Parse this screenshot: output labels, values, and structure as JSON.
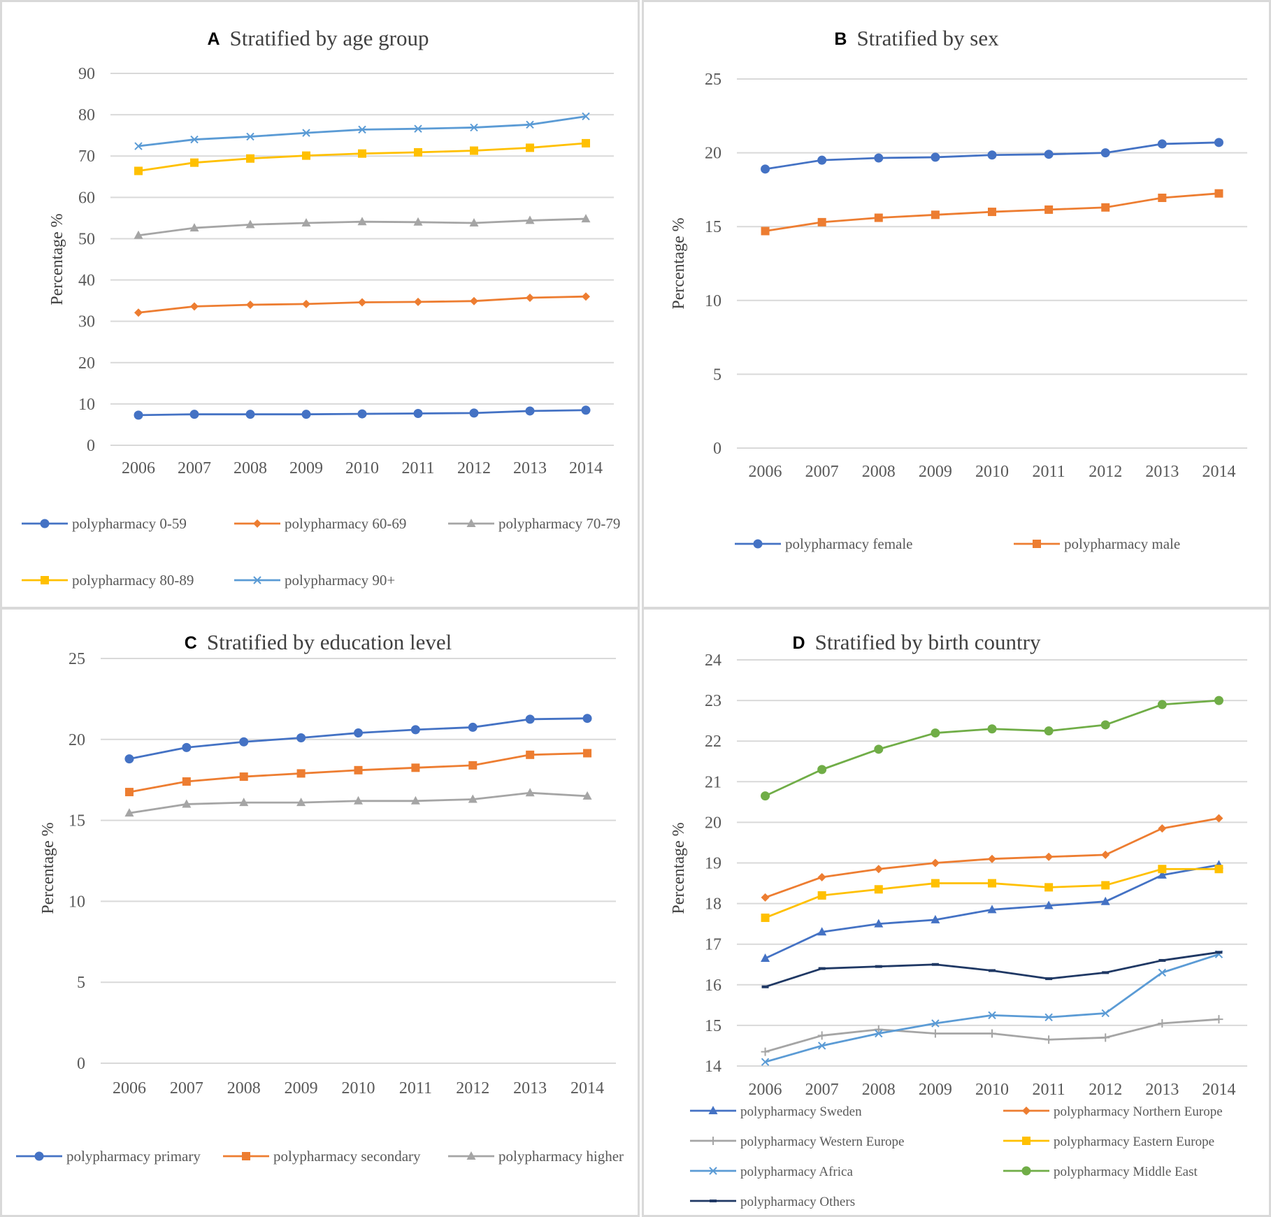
{
  "chart_data": [
    {
      "id": "A",
      "type": "line",
      "panel_letter": "A",
      "title": "Stratified by age group",
      "xlabel": "",
      "ylabel": "Percentage %",
      "categories": [
        "2006",
        "2007",
        "2008",
        "2009",
        "2010",
        "2011",
        "2012",
        "2013",
        "2014"
      ],
      "ylim": [
        0,
        90
      ],
      "yticks": [
        0,
        10,
        20,
        30,
        40,
        50,
        60,
        70,
        80,
        90
      ],
      "grid": true,
      "legend_position": "bottom",
      "series": [
        {
          "name": "polypharmacy 0-59",
          "color": "#4472c4",
          "marker": "circle",
          "values": [
            7.3,
            7.5,
            7.5,
            7.5,
            7.6,
            7.7,
            7.8,
            8.3,
            8.5
          ]
        },
        {
          "name": "polypharmacy 60-69",
          "color": "#ed7d31",
          "marker": "diamond",
          "values": [
            32.1,
            33.6,
            34.0,
            34.2,
            34.6,
            34.7,
            34.9,
            35.7,
            36.0
          ]
        },
        {
          "name": "polypharmacy 70-79",
          "color": "#a5a5a5",
          "marker": "triangle",
          "values": [
            50.8,
            52.6,
            53.4,
            53.8,
            54.1,
            54.0,
            53.8,
            54.4,
            54.8
          ]
        },
        {
          "name": "polypharmacy 80-89",
          "color": "#ffc000",
          "marker": "square",
          "values": [
            66.4,
            68.4,
            69.4,
            70.1,
            70.6,
            70.9,
            71.3,
            72.0,
            73.1
          ]
        },
        {
          "name": "polypharmacy 90+",
          "color": "#5b9bd5",
          "marker": "x",
          "values": [
            72.4,
            74.0,
            74.7,
            75.6,
            76.4,
            76.6,
            76.9,
            77.6,
            79.6
          ]
        }
      ]
    },
    {
      "id": "B",
      "type": "line",
      "panel_letter": "B",
      "title": "Stratified by sex",
      "xlabel": "",
      "ylabel": "Percentage %",
      "categories": [
        "2006",
        "2007",
        "2008",
        "2009",
        "2010",
        "2011",
        "2012",
        "2013",
        "2014"
      ],
      "ylim": [
        0,
        25
      ],
      "yticks": [
        0,
        5,
        10,
        15,
        20,
        25
      ],
      "grid": true,
      "legend_position": "bottom",
      "series": [
        {
          "name": "polypharmacy female",
          "color": "#4472c4",
          "marker": "circle",
          "values": [
            18.9,
            19.5,
            19.65,
            19.7,
            19.85,
            19.9,
            20.0,
            20.6,
            20.7
          ]
        },
        {
          "name": "polypharmacy male",
          "color": "#ed7d31",
          "marker": "square",
          "values": [
            14.7,
            15.3,
            15.6,
            15.8,
            16.0,
            16.15,
            16.3,
            16.95,
            17.25
          ]
        }
      ]
    },
    {
      "id": "C",
      "type": "line",
      "panel_letter": "C",
      "title": "Stratified by education level",
      "xlabel": "",
      "ylabel": "Percentage %",
      "categories": [
        "2006",
        "2007",
        "2008",
        "2009",
        "2010",
        "2011",
        "2012",
        "2013",
        "2014"
      ],
      "ylim": [
        0,
        25
      ],
      "yticks": [
        0,
        5,
        10,
        15,
        20,
        25
      ],
      "grid": true,
      "legend_position": "bottom",
      "series": [
        {
          "name": "polypharmacy primary",
          "color": "#4472c4",
          "marker": "circle",
          "values": [
            18.8,
            19.5,
            19.85,
            20.1,
            20.4,
            20.6,
            20.75,
            21.25,
            21.3
          ]
        },
        {
          "name": "polypharmacy secondary",
          "color": "#ed7d31",
          "marker": "square",
          "values": [
            16.75,
            17.4,
            17.7,
            17.9,
            18.1,
            18.25,
            18.4,
            19.05,
            19.15
          ]
        },
        {
          "name": "polypharmacy higher",
          "color": "#a5a5a5",
          "marker": "triangle",
          "values": [
            15.45,
            16.0,
            16.1,
            16.1,
            16.2,
            16.2,
            16.3,
            16.7,
            16.5
          ]
        }
      ]
    },
    {
      "id": "D",
      "type": "line",
      "panel_letter": "D",
      "title": "Stratified by birth country",
      "xlabel": "",
      "ylabel": "Percentage %",
      "categories": [
        "2006",
        "2007",
        "2008",
        "2009",
        "2010",
        "2011",
        "2012",
        "2013",
        "2014"
      ],
      "ylim": [
        14,
        24
      ],
      "yticks": [
        14,
        15,
        16,
        17,
        18,
        19,
        20,
        21,
        22,
        23,
        24
      ],
      "grid": true,
      "legend_position": "bottom",
      "series": [
        {
          "name": "polypharmacy Sweden",
          "color": "#4472c4",
          "marker": "triangle",
          "values": [
            16.65,
            17.3,
            17.5,
            17.6,
            17.85,
            17.95,
            18.05,
            18.7,
            18.95
          ]
        },
        {
          "name": "polypharmacy Northern Europe",
          "color": "#ed7d31",
          "marker": "diamond",
          "values": [
            18.15,
            18.65,
            18.85,
            19.0,
            19.1,
            19.15,
            19.2,
            19.85,
            20.1
          ]
        },
        {
          "name": "polypharmacy Western Europe",
          "color": "#a5a5a5",
          "marker": "plus",
          "values": [
            14.35,
            14.75,
            14.9,
            14.8,
            14.8,
            14.65,
            14.7,
            15.05,
            15.15
          ]
        },
        {
          "name": "polypharmacy Eastern Europe",
          "color": "#ffc000",
          "marker": "square",
          "values": [
            17.65,
            18.2,
            18.35,
            18.5,
            18.5,
            18.4,
            18.45,
            18.85,
            18.85
          ]
        },
        {
          "name": "polypharmacy Africa",
          "color": "#5b9bd5",
          "marker": "x",
          "values": [
            14.1,
            14.5,
            14.8,
            15.05,
            15.25,
            15.2,
            15.3,
            16.3,
            16.75
          ]
        },
        {
          "name": "polypharmacy Middle East",
          "color": "#70ad47",
          "marker": "circle",
          "values": [
            20.65,
            21.3,
            21.8,
            22.2,
            22.3,
            22.25,
            22.4,
            22.9,
            23.0
          ]
        },
        {
          "name": "polypharmacy Others",
          "color": "#1f3864",
          "marker": "dash",
          "values": [
            15.95,
            16.4,
            16.45,
            16.5,
            16.35,
            16.15,
            16.3,
            16.6,
            16.8
          ]
        }
      ]
    }
  ]
}
